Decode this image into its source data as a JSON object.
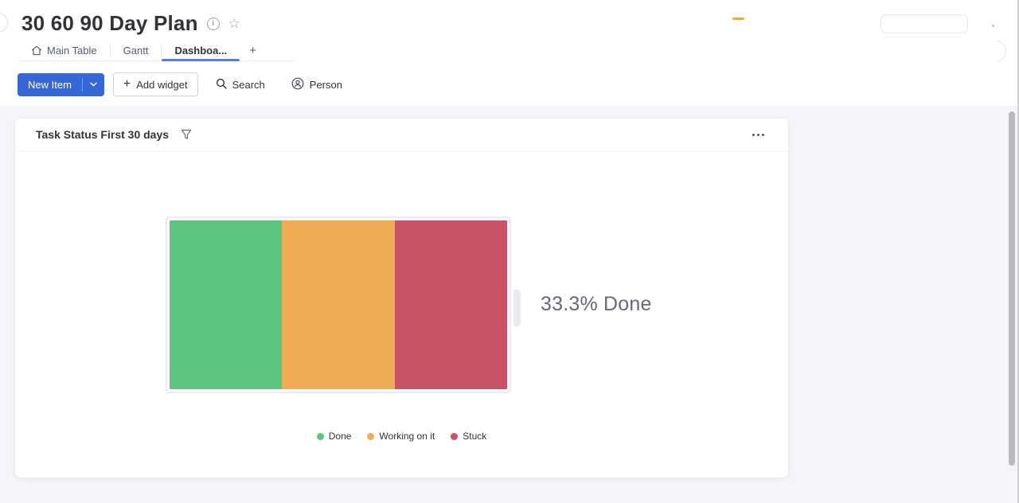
{
  "page": {
    "title": "30 60 90 Day Plan"
  },
  "header": {
    "tabs": [
      {
        "label": "Main Table",
        "icon": "home-icon",
        "active": false
      },
      {
        "label": "Gantt",
        "active": false
      },
      {
        "label": "Dashboa...",
        "active": true
      }
    ],
    "add_tab_label": "+"
  },
  "toolbar": {
    "new_item_label": "New Item",
    "add_widget_label": "Add widget",
    "add_widget_plus": "+",
    "search_label": "Search",
    "person_label": "Person"
  },
  "widget": {
    "title": "Task Status First 30 days"
  },
  "chart_data": {
    "type": "bar",
    "subtype": "battery",
    "stacked": true,
    "orientation": "horizontal",
    "title": "Task Status First 30 days",
    "categories": [
      "First 30 days"
    ],
    "series": [
      {
        "name": "Done",
        "values": [
          33.3
        ],
        "color": "#5cc47f"
      },
      {
        "name": "Working on it",
        "values": [
          33.3
        ],
        "color": "#efac52"
      },
      {
        "name": "Stuck",
        "values": [
          33.3
        ],
        "color": "#ca5266"
      }
    ],
    "center_label": "33.3% Done",
    "xlim": [
      0,
      100
    ],
    "grid": false,
    "legend_position": "bottom",
    "legend": [
      "Done",
      "Working on it",
      "Stuck"
    ]
  },
  "icons": {
    "title": [
      "info-icon",
      "star-icon"
    ],
    "tabs": [
      "home-icon",
      "plus-icon"
    ],
    "toolbar": [
      "chevron-down-icon",
      "plus-icon",
      "search-icon",
      "person-icon"
    ],
    "widget": [
      "filter-funnel-icon",
      "ellipsis-menu-icon"
    ]
  },
  "colors": {
    "accent_blue": "#3568d4",
    "active_tab_underline": "#5480dd",
    "dashboard_bg": "#f4f5f8",
    "done_green": "#5cc47f",
    "working_orange": "#efac52",
    "stuck_red": "#ca5266",
    "muted_text": "#676879"
  }
}
